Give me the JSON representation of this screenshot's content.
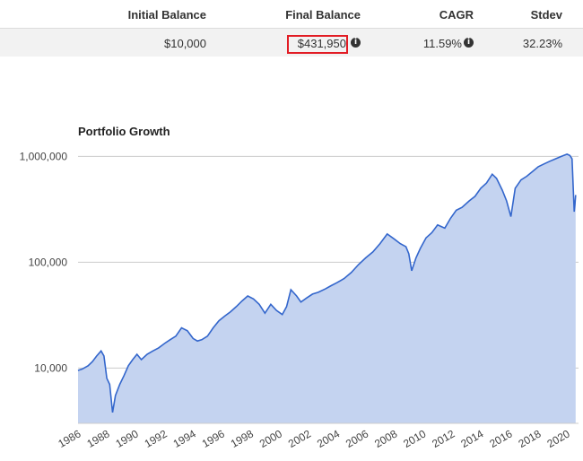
{
  "stats": {
    "headers": {
      "initial": "Initial Balance",
      "final": "Final Balance",
      "cagr": "CAGR",
      "stdev": "Stdev"
    },
    "values": {
      "initial": "$10,000",
      "final": "$431,950",
      "cagr": "11.59%",
      "stdev": "32.23%"
    },
    "info_icon": "info-icon",
    "highlight_color": "#e21c24"
  },
  "chart_data": {
    "type": "area",
    "title": "Portfolio Growth",
    "xlabel": "",
    "ylabel": "",
    "y_scale": "log",
    "ylim": [
      3000,
      1250000
    ],
    "xlim": [
      1986,
      2020.8
    ],
    "y_ticks": [
      10000,
      100000,
      1000000
    ],
    "y_tick_labels": [
      "10,000",
      "100,000",
      "1,000,000"
    ],
    "x_ticks": [
      1986,
      1988,
      1990,
      1992,
      1994,
      1996,
      1998,
      2000,
      2002,
      2004,
      2006,
      2008,
      2010,
      2012,
      2014,
      2016,
      2018,
      2020
    ],
    "x_tick_labels": [
      "1986",
      "1988",
      "1990",
      "1992",
      "1994",
      "1996",
      "1998",
      "2000",
      "2002",
      "2004",
      "2006",
      "2008",
      "2010",
      "2012",
      "2014",
      "2016",
      "2018",
      "2020"
    ],
    "grid": true,
    "line_color": "#3366cc",
    "fill_color": "#c4d3f0",
    "series": [
      {
        "x": [
          1986.0,
          1986.3,
          1986.7,
          1987.0,
          1987.3,
          1987.6,
          1987.8,
          1988.0,
          1988.2,
          1988.4,
          1988.6,
          1988.9,
          1989.2,
          1989.5,
          1989.8,
          1990.1,
          1990.4,
          1990.8,
          1991.2,
          1991.6,
          1992.0,
          1992.4,
          1992.8,
          1993.2,
          1993.6,
          1994.0,
          1994.3,
          1994.6,
          1995.0,
          1995.4,
          1995.8,
          1996.2,
          1996.6,
          1997.0,
          1997.4,
          1997.8,
          1998.2,
          1998.6,
          1999.0,
          1999.4,
          1999.8,
          2000.2,
          2000.5,
          2000.8,
          2001.2,
          2001.5,
          2001.9,
          2002.3,
          2002.7,
          2003.2,
          2003.6,
          2004.0,
          2004.5,
          2005.0,
          2005.5,
          2006.0,
          2006.5,
          2007.0,
          2007.5,
          2008.0,
          2008.4,
          2008.8,
          2009.0,
          2009.2,
          2009.5,
          2009.8,
          2010.2,
          2010.6,
          2011.0,
          2011.5,
          2011.9,
          2012.3,
          2012.7,
          2013.2,
          2013.6,
          2014.0,
          2014.4,
          2014.8,
          2015.1,
          2015.5,
          2015.8,
          2016.1,
          2016.4,
          2016.8,
          2017.2,
          2017.6,
          2018.0,
          2018.4,
          2018.8,
          2019.2,
          2019.6,
          2020.0,
          2020.2,
          2020.35,
          2020.5,
          2020.55,
          2020.6
        ],
        "y": [
          9500,
          9800,
          10500,
          11500,
          13000,
          14500,
          13000,
          8000,
          7000,
          3800,
          5500,
          7000,
          8500,
          10500,
          12000,
          13500,
          12000,
          13500,
          14500,
          15500,
          17000,
          18500,
          20000,
          24000,
          22500,
          19000,
          18000,
          18500,
          20000,
          24000,
          28000,
          31000,
          34000,
          38000,
          43000,
          48000,
          45000,
          40000,
          33000,
          40000,
          35000,
          32000,
          38000,
          55000,
          48000,
          42000,
          46000,
          50000,
          52000,
          56000,
          60000,
          64000,
          70000,
          80000,
          95000,
          110000,
          125000,
          150000,
          185000,
          165000,
          150000,
          140000,
          120000,
          83000,
          110000,
          135000,
          170000,
          190000,
          225000,
          210000,
          260000,
          310000,
          330000,
          380000,
          420000,
          500000,
          560000,
          680000,
          620000,
          480000,
          380000,
          270000,
          500000,
          600000,
          650000,
          720000,
          800000,
          850000,
          900000,
          950000,
          1000000,
          1050000,
          1020000,
          950000,
          300000,
          350000,
          431950
        ]
      }
    ]
  }
}
